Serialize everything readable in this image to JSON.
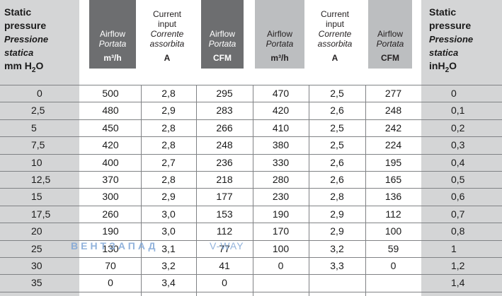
{
  "left_header": {
    "line1": "Static",
    "line2": "pressure",
    "it1": "Pressione",
    "it2": "statica",
    "unit_pre": "mm H",
    "unit_sub": "2",
    "unit_post": "O"
  },
  "right_header": {
    "line1": "Static",
    "line2": "pressure",
    "it1": "Pressione",
    "it2": "statica",
    "unit": "inH",
    "unit_sub": "2",
    "unit_post": "O"
  },
  "columns": [
    {
      "l1": "Airflow",
      "l2": "Portata",
      "unit": "m³/h"
    },
    {
      "l0": "Current",
      "l1": "input",
      "l2a": "Corrente",
      "l2b": "assorbita",
      "unit": "A"
    },
    {
      "l1": "Airflow",
      "l2": "Portata",
      "unit": "CFM"
    },
    {
      "l1": "Airflow",
      "l2": "Portata",
      "unit": "m³/h"
    },
    {
      "l0": "Current",
      "l1": "input",
      "l2a": "Corrente",
      "l2b": "assorbita",
      "unit": "A"
    },
    {
      "l1": "Airflow",
      "l2": "Portata",
      "unit": "CFM"
    }
  ],
  "rows": [
    [
      "0",
      "500",
      "2,8",
      "295",
      "470",
      "2,5",
      "277",
      "0"
    ],
    [
      "2,5",
      "480",
      "2,9",
      "283",
      "420",
      "2,6",
      "248",
      "0,1"
    ],
    [
      "5",
      "450",
      "2,8",
      "266",
      "410",
      "2,5",
      "242",
      "0,2"
    ],
    [
      "7,5",
      "420",
      "2,8",
      "248",
      "380",
      "2,5",
      "224",
      "0,3"
    ],
    [
      "10",
      "400",
      "2,7",
      "236",
      "330",
      "2,6",
      "195",
      "0,4"
    ],
    [
      "12,5",
      "370",
      "2,8",
      "218",
      "280",
      "2,6",
      "165",
      "0,5"
    ],
    [
      "15",
      "300",
      "2,9",
      "177",
      "230",
      "2,8",
      "136",
      "0,6"
    ],
    [
      "17,5",
      "260",
      "3,0",
      "153",
      "190",
      "2,9",
      "112",
      "0,7"
    ],
    [
      "20",
      "190",
      "3,0",
      "112",
      "170",
      "2,9",
      "100",
      "0,8"
    ],
    [
      "25",
      "130",
      "3,1",
      "77",
      "100",
      "3,2",
      "59",
      "1"
    ],
    [
      "30",
      "70",
      "3,2",
      "41",
      "0",
      "3,3",
      "0",
      "1,2"
    ],
    [
      "35",
      "0",
      "3,4",
      "0",
      "",
      "",
      "",
      "1,4"
    ]
  ],
  "watermark": {
    "text": "ВЕНТЗАПАД",
    "text2": "V-WAY"
  }
}
